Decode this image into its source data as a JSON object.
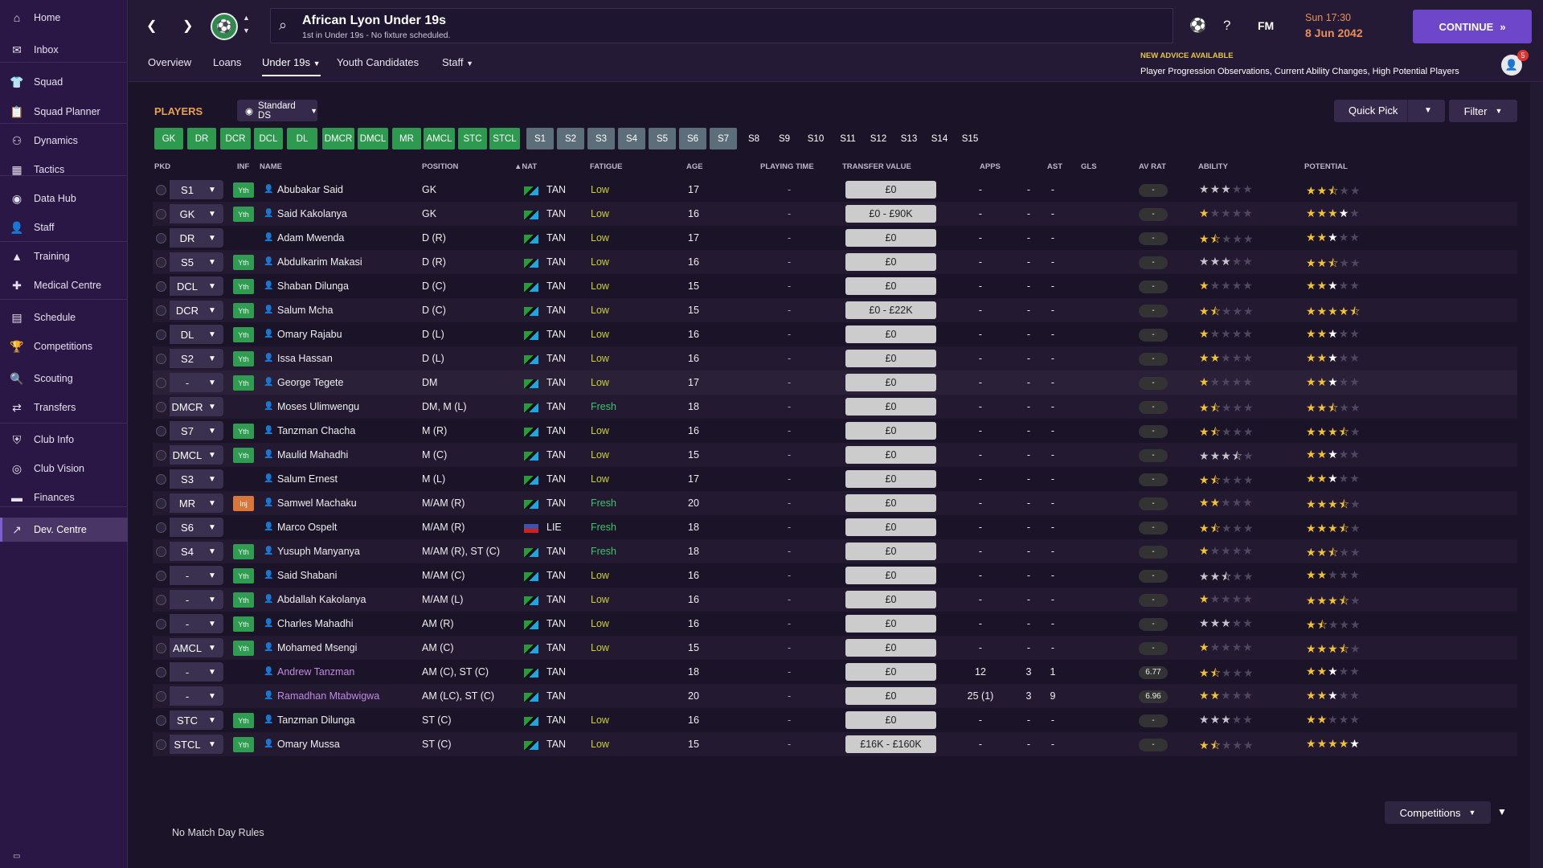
{
  "sidebar": {
    "items": [
      {
        "label": "Home",
        "icon": "home-icon",
        "glyph": "⌂"
      },
      {
        "label": "Inbox",
        "icon": "inbox-icon",
        "glyph": "✉"
      },
      {
        "label": "Squad",
        "icon": "squad-icon",
        "glyph": "👕"
      },
      {
        "label": "Squad Planner",
        "icon": "squad-planner-icon",
        "glyph": "📋"
      },
      {
        "label": "Dynamics",
        "icon": "dynamics-icon",
        "glyph": "⚇"
      },
      {
        "label": "Tactics",
        "icon": "tactics-icon",
        "glyph": "▦"
      },
      {
        "label": "Data Hub",
        "icon": "data-hub-icon",
        "glyph": "◉"
      },
      {
        "label": "Staff",
        "icon": "staff-icon",
        "glyph": "👤"
      },
      {
        "label": "Training",
        "icon": "training-icon",
        "glyph": "▲"
      },
      {
        "label": "Medical Centre",
        "icon": "medical-icon",
        "glyph": "✚"
      },
      {
        "label": "Schedule",
        "icon": "schedule-icon",
        "glyph": "▤"
      },
      {
        "label": "Competitions",
        "icon": "trophy-icon",
        "glyph": "🏆"
      },
      {
        "label": "Scouting",
        "icon": "scouting-icon",
        "glyph": "🔍"
      },
      {
        "label": "Transfers",
        "icon": "transfers-icon",
        "glyph": "⇄"
      },
      {
        "label": "Club Info",
        "icon": "club-info-icon",
        "glyph": "⛨"
      },
      {
        "label": "Club Vision",
        "icon": "club-vision-icon",
        "glyph": "◎"
      },
      {
        "label": "Finances",
        "icon": "finances-icon",
        "glyph": "▬"
      },
      {
        "label": "Dev. Centre",
        "icon": "dev-centre-icon",
        "glyph": "↗"
      }
    ]
  },
  "header": {
    "team_name": "African Lyon Under 19s",
    "team_sub": "1st in Under 19s - No fixture scheduled.",
    "fm": "FM",
    "day": "Sun 17:30",
    "date": "8 Jun 2042",
    "continue": "CONTINUE"
  },
  "tabs": [
    "Overview",
    "Loans",
    "Under 19s",
    "Youth Candidates",
    "Staff"
  ],
  "advice": {
    "title": "NEW ADVICE AVAILABLE",
    "text": "Player Progression Observations, Current Ability Changes, High Potential Players",
    "count": "5"
  },
  "players_title": "PLAYERS",
  "view": "Standard DS",
  "quick_pick": "Quick Pick",
  "filter": "Filter",
  "positions": [
    "GK",
    "DR",
    "DCR",
    "DCL",
    "DL",
    "DMCR",
    "DMCL",
    "MR",
    "AMCL",
    "STC",
    "STCL",
    "S1",
    "S2",
    "S3",
    "S4",
    "S5",
    "S6",
    "S7",
    "S8",
    "S9",
    "S10",
    "S11",
    "S12",
    "S13",
    "S14",
    "S15"
  ],
  "columns": {
    "pkd": "PKD",
    "inf": "INF",
    "name": "NAME",
    "position": "POSITION",
    "nat": "NAT",
    "fatigue": "FATIGUE",
    "age": "AGE",
    "playing_time": "PLAYING TIME",
    "transfer_value": "TRANSFER VALUE",
    "apps": "APPS",
    "ast": "AST",
    "gls": "GLS",
    "av_rat": "AV RAT",
    "ability": "ABILITY",
    "potential": "POTENTIAL"
  },
  "players": [
    {
      "sel": "S1",
      "inf": "Yth",
      "name": "Abubakar Said",
      "pos": "GK",
      "nat": "TAN",
      "fat": "Low",
      "age": "17",
      "pt": "-",
      "tv": "£0",
      "apps": "-",
      "ast": "-",
      "gls": "-",
      "rat": "-",
      "ab": 3,
      "abc": "grey",
      "po": 2.5,
      "poc": "gold"
    },
    {
      "sel": "GK",
      "inf": "Yth",
      "name": "Said Kakolanya",
      "pos": "GK",
      "nat": "TAN",
      "fat": "Low",
      "age": "16",
      "pt": "-",
      "tv": "£0 - £90K",
      "apps": "-",
      "ast": "-",
      "gls": "-",
      "rat": "-",
      "ab": 1,
      "abc": "gold",
      "po": 4,
      "poc": "goldwhite"
    },
    {
      "sel": "DR",
      "inf": "",
      "name": "Adam Mwenda",
      "pos": "D (R)",
      "nat": "TAN",
      "fat": "Low",
      "age": "17",
      "pt": "-",
      "tv": "£0",
      "apps": "-",
      "ast": "-",
      "gls": "-",
      "rat": "-",
      "ab": 1.5,
      "abc": "gold",
      "po": 3,
      "poc": "goldwhite"
    },
    {
      "sel": "S5",
      "inf": "Yth",
      "name": "Abdulkarim Makasi",
      "pos": "D (R)",
      "nat": "TAN",
      "fat": "Low",
      "age": "16",
      "pt": "-",
      "tv": "£0",
      "apps": "-",
      "ast": "-",
      "gls": "-",
      "rat": "-",
      "ab": 3,
      "abc": "grey",
      "po": 2.5,
      "poc": "gold"
    },
    {
      "sel": "DCL",
      "inf": "Yth",
      "name": "Shaban Dilunga",
      "pos": "D (C)",
      "nat": "TAN",
      "fat": "Low",
      "age": "15",
      "pt": "-",
      "tv": "£0",
      "apps": "-",
      "ast": "-",
      "gls": "-",
      "rat": "-",
      "ab": 1,
      "abc": "gold",
      "po": 3,
      "poc": "goldwhite"
    },
    {
      "sel": "DCR",
      "inf": "Yth",
      "name": "Salum Mcha",
      "pos": "D (C)",
      "nat": "TAN",
      "fat": "Low",
      "age": "15",
      "pt": "-",
      "tv": "£0 - £22K",
      "apps": "-",
      "ast": "-",
      "gls": "-",
      "rat": "-",
      "ab": 1.5,
      "abc": "gold",
      "po": 4.5,
      "poc": "goldwhite"
    },
    {
      "sel": "DL",
      "inf": "Yth",
      "name": "Omary Rajabu",
      "pos": "D (L)",
      "nat": "TAN",
      "fat": "Low",
      "age": "16",
      "pt": "-",
      "tv": "£0",
      "apps": "-",
      "ast": "-",
      "gls": "-",
      "rat": "-",
      "ab": 1,
      "abc": "gold",
      "po": 3,
      "poc": "goldwhite"
    },
    {
      "sel": "S2",
      "inf": "Yth",
      "name": "Issa Hassan",
      "pos": "D (L)",
      "nat": "TAN",
      "fat": "Low",
      "age": "16",
      "pt": "-",
      "tv": "£0",
      "apps": "-",
      "ast": "-",
      "gls": "-",
      "rat": "-",
      "ab": 2,
      "abc": "gold",
      "po": 3,
      "poc": "goldwhite"
    },
    {
      "sel": "-",
      "inf": "Yth",
      "name": "George Tegete",
      "pos": "DM",
      "nat": "TAN",
      "fat": "Low",
      "age": "17",
      "pt": "-",
      "tv": "£0",
      "apps": "-",
      "ast": "-",
      "gls": "-",
      "rat": "-",
      "ab": 1,
      "abc": "gold",
      "po": 3,
      "poc": "goldwhite"
    },
    {
      "sel": "DMCR",
      "inf": "",
      "name": "Moses Ulimwengu",
      "pos": "DM, M (L)",
      "nat": "TAN",
      "fat": "Fresh",
      "age": "18",
      "pt": "-",
      "tv": "£0",
      "apps": "-",
      "ast": "-",
      "gls": "-",
      "rat": "-",
      "ab": 1.5,
      "abc": "gold",
      "po": 2.5,
      "poc": "gold"
    },
    {
      "sel": "S7",
      "inf": "Yth",
      "name": "Tanzman Chacha",
      "pos": "M (R)",
      "nat": "TAN",
      "fat": "Low",
      "age": "16",
      "pt": "-",
      "tv": "£0",
      "apps": "-",
      "ast": "-",
      "gls": "-",
      "rat": "-",
      "ab": 1.5,
      "abc": "gold",
      "po": 3.5,
      "poc": "gold"
    },
    {
      "sel": "DMCL",
      "inf": "Yth",
      "name": "Maulid Mahadhi",
      "pos": "M (C)",
      "nat": "TAN",
      "fat": "Low",
      "age": "15",
      "pt": "-",
      "tv": "£0",
      "apps": "-",
      "ast": "-",
      "gls": "-",
      "rat": "-",
      "ab": 3.5,
      "abc": "grey",
      "po": 3,
      "poc": "goldwhite"
    },
    {
      "sel": "S3",
      "inf": "",
      "name": "Salum Ernest",
      "pos": "M (L)",
      "nat": "TAN",
      "fat": "Low",
      "age": "17",
      "pt": "-",
      "tv": "£0",
      "apps": "-",
      "ast": "-",
      "gls": "-",
      "rat": "-",
      "ab": 1.5,
      "abc": "gold",
      "po": 3,
      "poc": "goldwhite"
    },
    {
      "sel": "MR",
      "inf": "Inj",
      "name": "Samwel Machaku",
      "pos": "M/AM (R)",
      "nat": "TAN",
      "fat": "Fresh",
      "age": "20",
      "pt": "-",
      "tv": "£0",
      "apps": "-",
      "ast": "-",
      "gls": "-",
      "rat": "-",
      "ab": 2,
      "abc": "gold",
      "po": 3.5,
      "poc": "gold"
    },
    {
      "sel": "S6",
      "inf": "",
      "name": "Marco Ospelt",
      "pos": "M/AM (R)",
      "nat": "LIE",
      "fat": "Fresh",
      "age": "18",
      "pt": "-",
      "tv": "£0",
      "apps": "-",
      "ast": "-",
      "gls": "-",
      "rat": "-",
      "ab": 1.5,
      "abc": "gold",
      "po": 3.5,
      "poc": "gold"
    },
    {
      "sel": "S4",
      "inf": "Yth",
      "name": "Yusuph Manyanya",
      "pos": "M/AM (R), ST (C)",
      "nat": "TAN",
      "fat": "Fresh",
      "age": "18",
      "pt": "-",
      "tv": "£0",
      "apps": "-",
      "ast": "-",
      "gls": "-",
      "rat": "-",
      "ab": 1,
      "abc": "gold",
      "po": 2.5,
      "poc": "gold"
    },
    {
      "sel": "-",
      "inf": "Yth",
      "name": "Said Shabani",
      "pos": "M/AM (C)",
      "nat": "TAN",
      "fat": "Low",
      "age": "16",
      "pt": "-",
      "tv": "£0",
      "apps": "-",
      "ast": "-",
      "gls": "-",
      "rat": "-",
      "ab": 2.5,
      "abc": "grey",
      "po": 2,
      "poc": "gold"
    },
    {
      "sel": "-",
      "inf": "Yth",
      "name": "Abdallah Kakolanya",
      "pos": "M/AM (L)",
      "nat": "TAN",
      "fat": "Low",
      "age": "16",
      "pt": "-",
      "tv": "£0",
      "apps": "-",
      "ast": "-",
      "gls": "-",
      "rat": "-",
      "ab": 1,
      "abc": "gold",
      "po": 3.5,
      "poc": "gold"
    },
    {
      "sel": "-",
      "inf": "Yth",
      "name": "Charles Mahadhi",
      "pos": "AM (R)",
      "nat": "TAN",
      "fat": "Low",
      "age": "16",
      "pt": "-",
      "tv": "£0",
      "apps": "-",
      "ast": "-",
      "gls": "-",
      "rat": "-",
      "ab": 3,
      "abc": "grey",
      "po": 1.5,
      "poc": "gold"
    },
    {
      "sel": "AMCL",
      "inf": "Yth",
      "name": "Mohamed Msengi",
      "pos": "AM (C)",
      "nat": "TAN",
      "fat": "Low",
      "age": "15",
      "pt": "-",
      "tv": "£0",
      "apps": "-",
      "ast": "-",
      "gls": "-",
      "rat": "-",
      "ab": 1,
      "abc": "gold",
      "po": 3.5,
      "poc": "gold"
    },
    {
      "sel": "-",
      "inf": "",
      "name": "Andrew Tanzman",
      "pos": "AM (C), ST (C)",
      "nat": "TAN",
      "fat": "",
      "age": "18",
      "pt": "-",
      "tv": "£0",
      "apps": "12",
      "ast": "3",
      "gls": "1",
      "rat": "6.77",
      "ab": 1.5,
      "abc": "gold",
      "po": 3,
      "poc": "goldwhite",
      "loan": true
    },
    {
      "sel": "-",
      "inf": "",
      "name": "Ramadhan Mtabwigwa",
      "pos": "AM (LC), ST (C)",
      "nat": "TAN",
      "fat": "",
      "age": "20",
      "pt": "-",
      "tv": "£0",
      "apps": "25 (1)",
      "ast": "3",
      "gls": "9",
      "rat": "6.96",
      "ab": 2,
      "abc": "gold",
      "po": 3,
      "poc": "goldwhite",
      "loan": true
    },
    {
      "sel": "STC",
      "inf": "Yth",
      "name": "Tanzman Dilunga",
      "pos": "ST (C)",
      "nat": "TAN",
      "fat": "Low",
      "age": "16",
      "pt": "-",
      "tv": "£0",
      "apps": "-",
      "ast": "-",
      "gls": "-",
      "rat": "-",
      "ab": 3,
      "abc": "grey",
      "po": 2,
      "poc": "gold"
    },
    {
      "sel": "STCL",
      "inf": "Yth",
      "name": "Omary Mussa",
      "pos": "ST (C)",
      "nat": "TAN",
      "fat": "Low",
      "age": "15",
      "pt": "-",
      "tv": "£16K - £160K",
      "apps": "-",
      "ast": "-",
      "gls": "-",
      "rat": "-",
      "ab": 1.5,
      "abc": "gold",
      "po": 5,
      "poc": "goldwhite"
    }
  ],
  "footer": {
    "no_match": "No Match Day Rules",
    "competitions": "Competitions"
  }
}
